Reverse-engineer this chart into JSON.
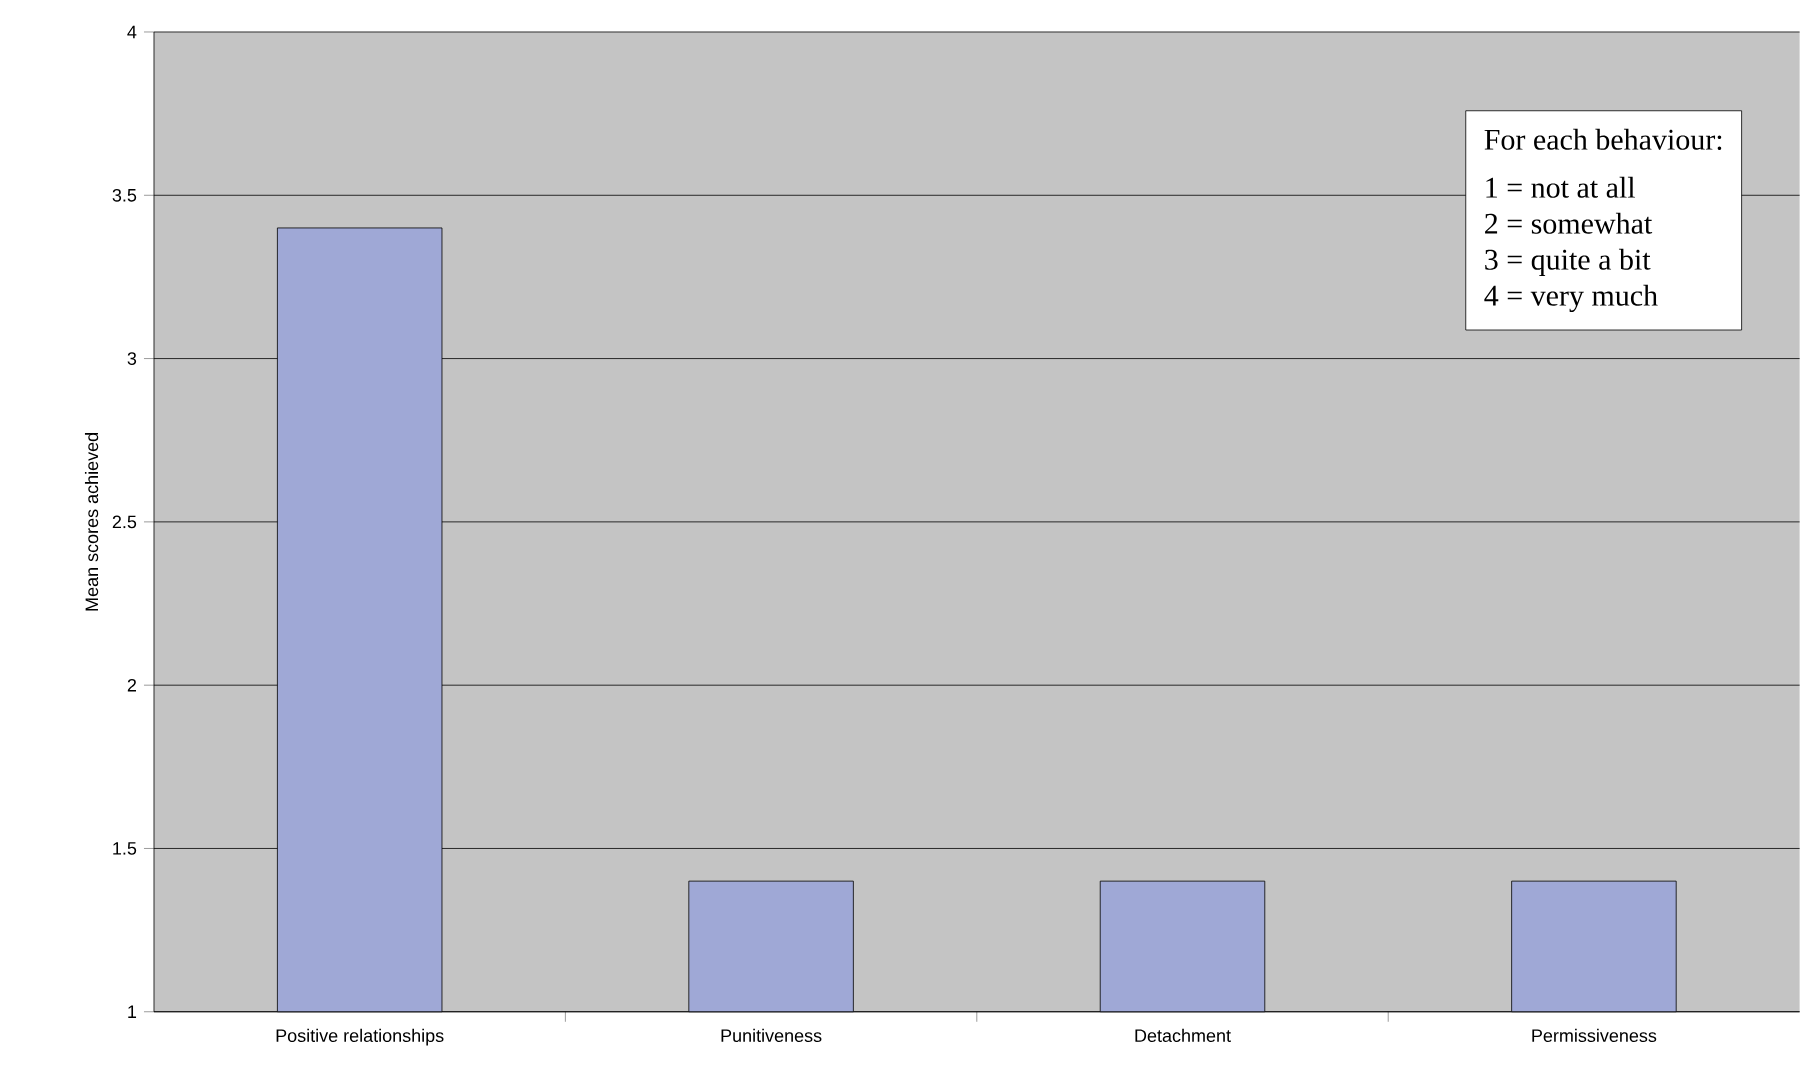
{
  "chart_data": {
    "type": "bar",
    "ylabel": "Mean scores achieved",
    "categories": [
      "Positive relationships",
      "Punitiveness",
      "Detachment",
      "Permissiveness"
    ],
    "values": [
      3.4,
      1.4,
      1.4,
      1.4
    ],
    "color": "#9fa8d6",
    "ylim": [
      1,
      4
    ],
    "yticks": [
      1,
      1.5,
      2,
      2.5,
      3,
      3.5,
      4
    ],
    "grid": "y",
    "annotations": [
      "For each behaviour:",
      "1 = not at all",
      "2 = somewhat",
      "3 = quite a bit",
      "4 = very much"
    ]
  }
}
